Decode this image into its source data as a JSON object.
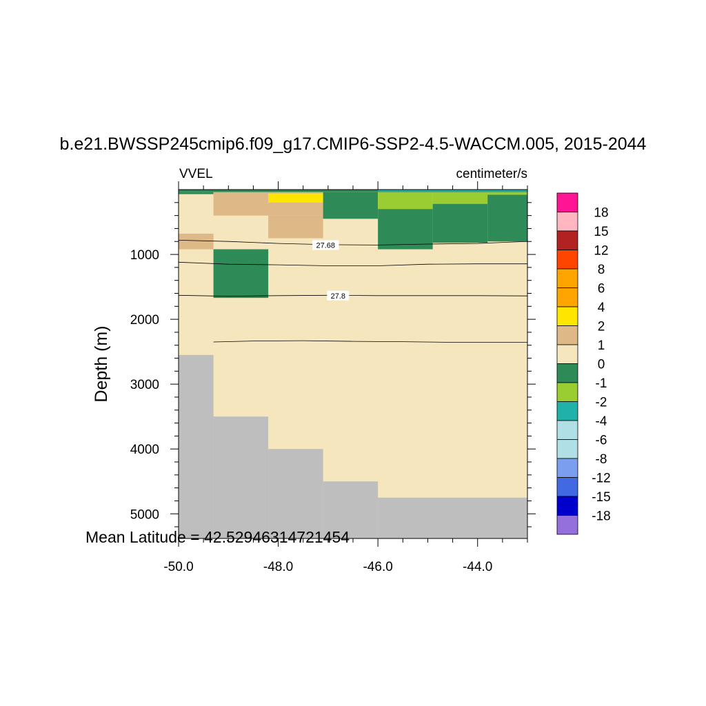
{
  "chart_data": {
    "type": "heatmap",
    "title": "b.e21.BWSSP245cmip6.f09_g17.CMIP6-SSP2-4.5-WACCM.005, 2015-2044",
    "left_label": "VVEL",
    "right_label": "centimeter/s",
    "ylabel": "Depth (m)",
    "xlabel": "",
    "annotation": "Mean Latitude = 42.52946314721454",
    "xlim": [
      -50.0,
      -43.0
    ],
    "ylim": [
      5380,
      0
    ],
    "x_major_ticks": [
      -50.0,
      -48.0,
      -46.0,
      -44.0
    ],
    "x_tick_labels": [
      "-50.0",
      "-48.0",
      "-46.0",
      "-44.0"
    ],
    "x_minor_step": 0.5,
    "y_major_ticks": [
      1000,
      2000,
      3000,
      4000,
      5000
    ],
    "y_tick_labels": [
      "1000",
      "2000",
      "3000",
      "4000",
      "5000"
    ],
    "y_minor_step": 200,
    "background_value_color": "#F5E6BE",
    "cells": [
      {
        "x0": -50.0,
        "x1": -43.0,
        "y0": 0,
        "y1": 40,
        "color": "#2E8B57"
      },
      {
        "x0": -46.0,
        "x1": -43.0,
        "y0": 0,
        "y1": 30,
        "color": "#20B2AA"
      },
      {
        "x0": -50.0,
        "x1": -49.3,
        "y0": 40,
        "y1": 70,
        "color": "#2E8B57"
      },
      {
        "x0": -49.3,
        "x1": -47.1,
        "y0": 40,
        "y1": 400,
        "color": "#DEB887"
      },
      {
        "x0": -48.2,
        "x1": -47.1,
        "y0": 400,
        "y1": 750,
        "color": "#DEB887"
      },
      {
        "x0": -48.2,
        "x1": -47.1,
        "y0": 60,
        "y1": 200,
        "color": "#FFE600"
      },
      {
        "x0": -47.1,
        "x1": -46.0,
        "y0": 40,
        "y1": 450,
        "color": "#2E8B57"
      },
      {
        "x0": -46.0,
        "x1": -44.9,
        "y0": 40,
        "y1": 300,
        "color": "#9ACD32"
      },
      {
        "x0": -44.9,
        "x1": -43.8,
        "y0": 40,
        "y1": 220,
        "color": "#9ACD32"
      },
      {
        "x0": -43.8,
        "x1": -43.0,
        "y0": 40,
        "y1": 80,
        "color": "#9ACD32"
      },
      {
        "x0": -46.0,
        "x1": -44.9,
        "y0": 300,
        "y1": 920,
        "color": "#2E8B57"
      },
      {
        "x0": -44.9,
        "x1": -43.8,
        "y0": 220,
        "y1": 820,
        "color": "#2E8B57"
      },
      {
        "x0": -43.8,
        "x1": -43.0,
        "y0": 80,
        "y1": 800,
        "color": "#2E8B57"
      },
      {
        "x0": -50.0,
        "x1": -49.3,
        "y0": 680,
        "y1": 920,
        "color": "#DEB887"
      },
      {
        "x0": -49.3,
        "x1": -48.2,
        "y0": 920,
        "y1": 1670,
        "color": "#2E8B57"
      }
    ],
    "land_color": "#BEBEBE",
    "land": [
      {
        "x0": -50.0,
        "x1": -49.3,
        "y_top": 2550
      },
      {
        "x0": -49.3,
        "x1": -48.2,
        "y_top": 3500
      },
      {
        "x0": -48.2,
        "x1": -47.1,
        "y_top": 4000
      },
      {
        "x0": -47.1,
        "x1": -46.0,
        "y_top": 4500
      },
      {
        "x0": -46.0,
        "x1": -43.0,
        "y_top": 4750
      }
    ],
    "contours": [
      {
        "points": [
          [
            -50.0,
            780
          ],
          [
            -49.0,
            800
          ],
          [
            -48.0,
            830
          ],
          [
            -47.0,
            850
          ],
          [
            -46.0,
            855
          ],
          [
            -45.0,
            840
          ],
          [
            -44.0,
            830
          ],
          [
            -43.0,
            800
          ]
        ]
      },
      {
        "points": [
          [
            -50.0,
            1120
          ],
          [
            -49.0,
            1150
          ],
          [
            -48.0,
            1160
          ],
          [
            -47.0,
            1175
          ],
          [
            -46.0,
            1175
          ],
          [
            -45.0,
            1150
          ],
          [
            -44.0,
            1145
          ],
          [
            -43.0,
            1145
          ]
        ]
      },
      {
        "points": [
          [
            -50.0,
            1630
          ],
          [
            -49.0,
            1645
          ],
          [
            -48.0,
            1635
          ],
          [
            -47.0,
            1630
          ],
          [
            -46.0,
            1635
          ],
          [
            -45.0,
            1635
          ],
          [
            -44.0,
            1635
          ],
          [
            -43.0,
            1640
          ]
        ]
      },
      {
        "points": [
          [
            -49.3,
            2350
          ],
          [
            -48.5,
            2335
          ],
          [
            -47.5,
            2330
          ],
          [
            -46.5,
            2340
          ],
          [
            -45.5,
            2345
          ],
          [
            -44.5,
            2355
          ],
          [
            -43.0,
            2355
          ]
        ]
      }
    ],
    "contour_labels": [
      {
        "text": "27.68",
        "x": -47.05,
        "y": 855
      },
      {
        "text": "27.8",
        "x": -46.8,
        "y": 1635
      }
    ],
    "colorbar": {
      "colors": [
        "#FF1493",
        "#FFB6C1",
        "#B22222",
        "#FF4500",
        "#FFA500",
        "#FFA500",
        "#FFE600",
        "#DEB887",
        "#F5E6BE",
        "#2E8B57",
        "#9ACD32",
        "#20B2AA",
        "#B0E0E6",
        "#B0E0E6",
        "#7B9EEF",
        "#4169E1",
        "#0000CD",
        "#9370DB"
      ],
      "labels": [
        "18",
        "15",
        "12",
        "8",
        "6",
        "4",
        "2",
        "1",
        "0",
        "-1",
        "-2",
        "-4",
        "-6",
        "-8",
        "-12",
        "-15",
        "-18"
      ]
    }
  }
}
